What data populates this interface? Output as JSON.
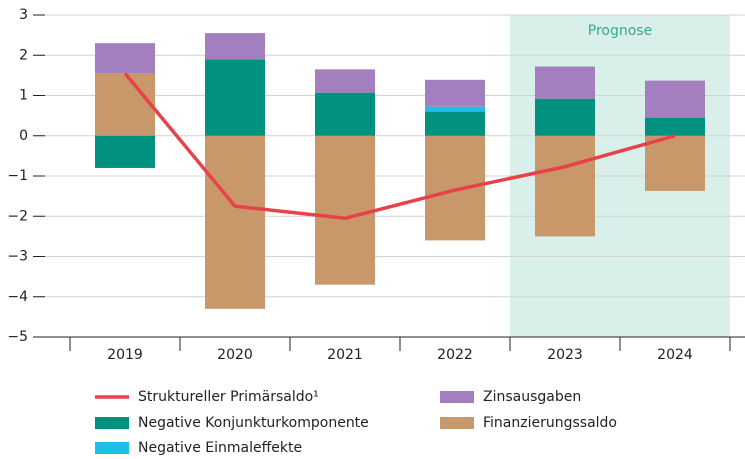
{
  "chart_data": {
    "type": "bar",
    "stacked": true,
    "categories": [
      "2019",
      "2020",
      "2021",
      "2022",
      "2023",
      "2024"
    ],
    "series": [
      {
        "name": "Finanzierungssaldo",
        "color": "#c8976a",
        "values": [
          1.55,
          -4.3,
          -3.7,
          -2.6,
          -2.5,
          -1.37
        ]
      },
      {
        "name": "Negative Konjunkturkomponente",
        "color": "#00927f",
        "values": [
          -0.8,
          1.9,
          1.07,
          0.6,
          0.92,
          0.45
        ]
      },
      {
        "name": "Negative Einmaleffekte",
        "color": "#1ec0e8",
        "values": [
          0,
          0,
          0,
          0.12,
          0,
          0
        ]
      },
      {
        "name": "Zinsausgaben",
        "color": "#a47fbf",
        "values": [
          0.75,
          0.65,
          0.58,
          0.67,
          0.8,
          0.92
        ]
      },
      {
        "name": "Struktureller Primärsaldo¹",
        "color": "#e8414a",
        "type": "line",
        "values": [
          1.55,
          -1.75,
          -2.05,
          -1.35,
          -0.77,
          0
        ]
      }
    ],
    "annotations": [
      {
        "text": "Prognose",
        "from": "2023",
        "to": "2024",
        "color": "#d9efe9"
      }
    ],
    "ylim": [
      -5,
      3
    ],
    "yticks": [
      {
        "value": -5,
        "label": "−5"
      },
      {
        "value": -4,
        "label": "−4"
      },
      {
        "value": -3,
        "label": "−3"
      },
      {
        "value": -2,
        "label": "−2"
      },
      {
        "value": -1,
        "label": "−1"
      },
      0,
      1,
      2,
      3
    ],
    "grid": true
  }
}
